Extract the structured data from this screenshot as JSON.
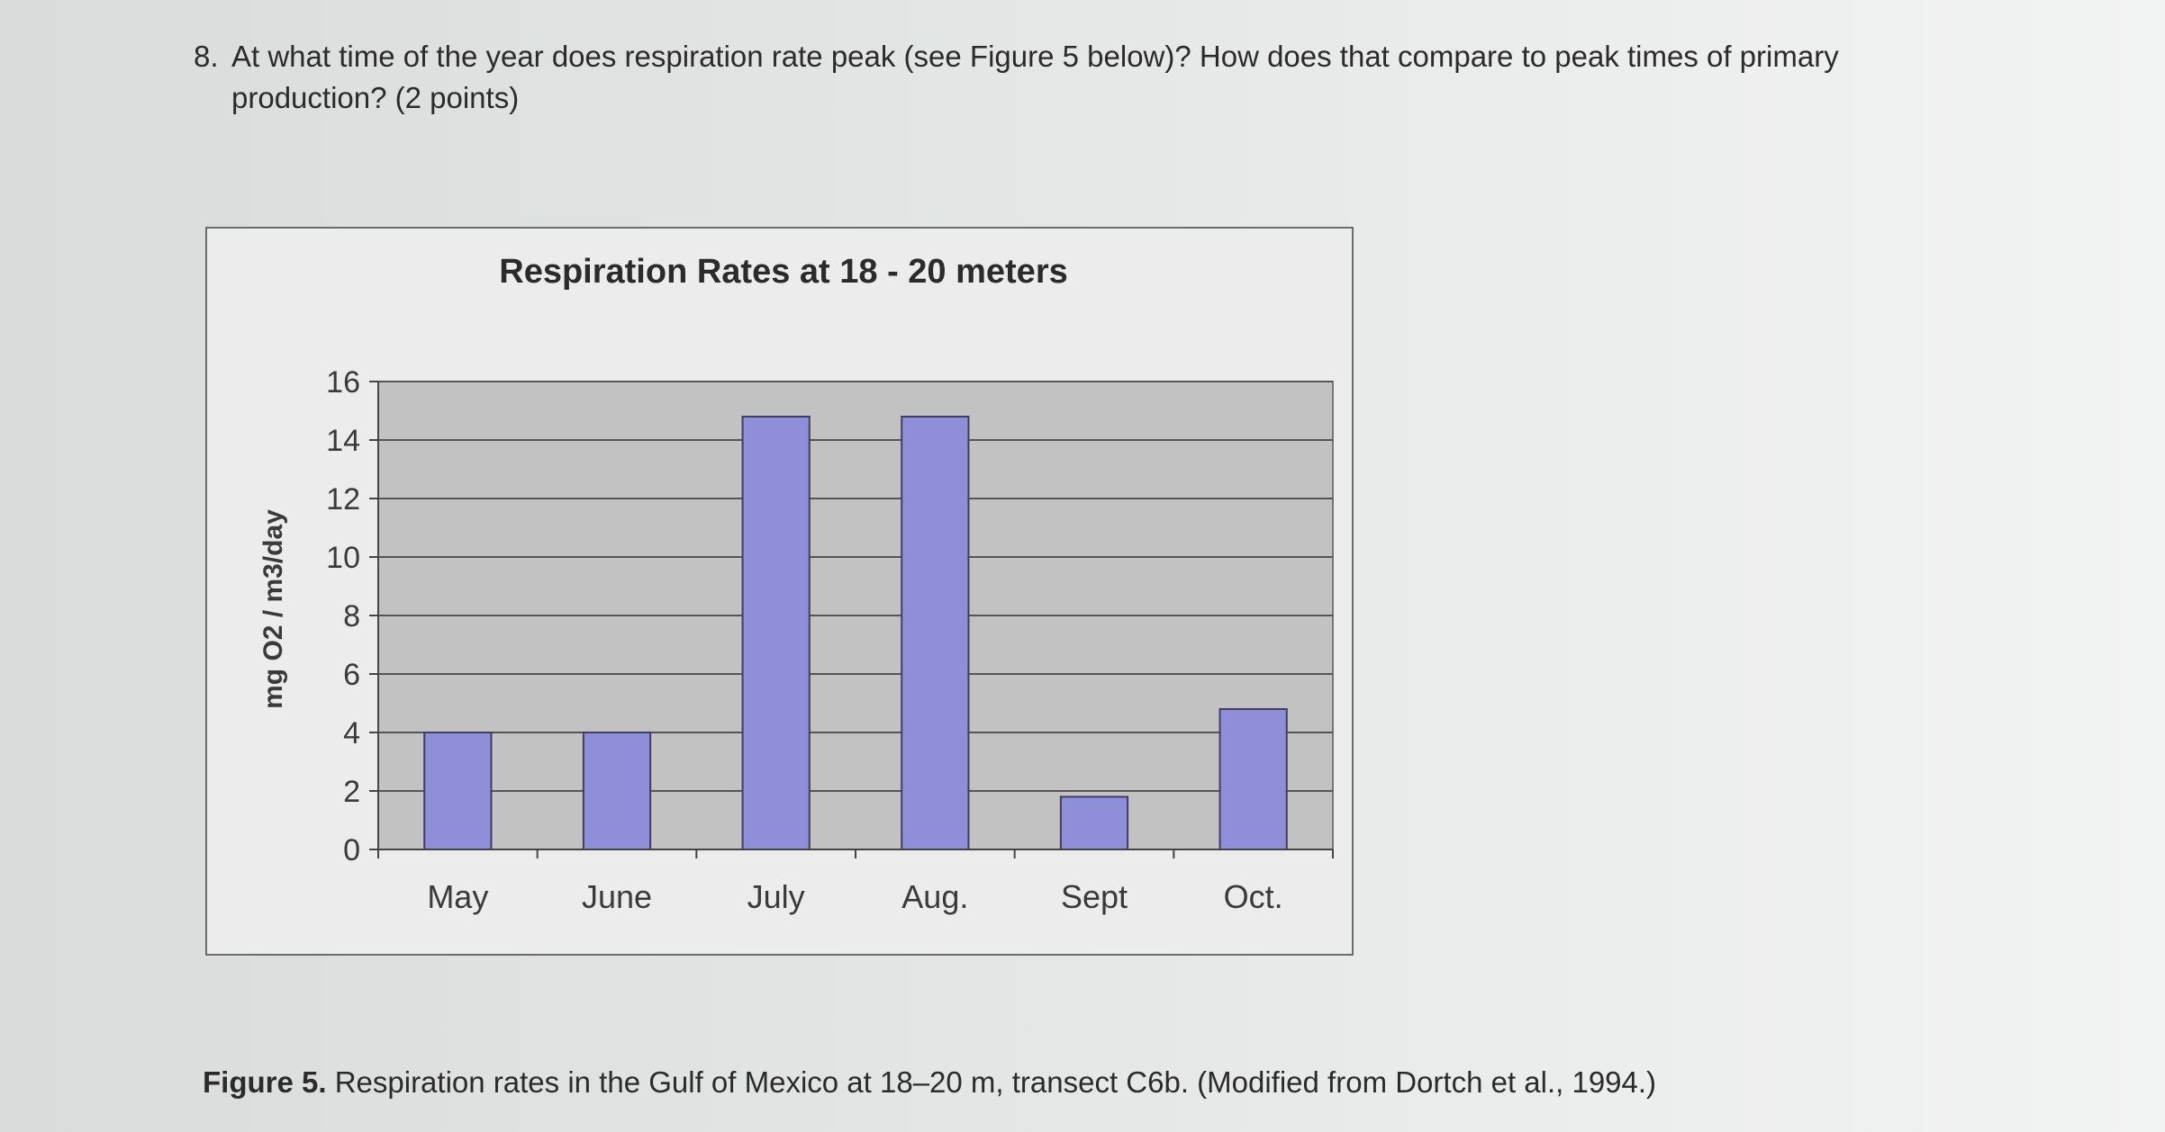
{
  "question": {
    "number": "8.",
    "text": "At what time of the year does respiration rate peak (see Figure 5 below)? How does that compare to peak times of primary production? (2 points)"
  },
  "caption": {
    "label": "Figure 5.",
    "text": "Respiration rates in the Gulf of Mexico at 18–20 m, transect C6b. (Modified from Dortch et al., 1994.)"
  },
  "colors": {
    "bar": "#8e8fd8",
    "plot_background": "#c2c2c2",
    "frame_background": "#ececec",
    "gridline": "#555555"
  },
  "chart_data": {
    "type": "bar",
    "title": "Respiration Rates at 18 - 20 meters",
    "xlabel": "",
    "ylabel": "mg O2 / m3/day",
    "categories": [
      "May",
      "June",
      "July",
      "Aug.",
      "Sept",
      "Oct."
    ],
    "values": [
      4.0,
      4.0,
      14.8,
      14.8,
      1.8,
      4.8
    ],
    "ylim": [
      0,
      16
    ],
    "yticks": [
      "0",
      "2",
      "4",
      "6",
      "8",
      "10",
      "12",
      "14",
      "16"
    ],
    "grid": true,
    "legend": "none"
  }
}
